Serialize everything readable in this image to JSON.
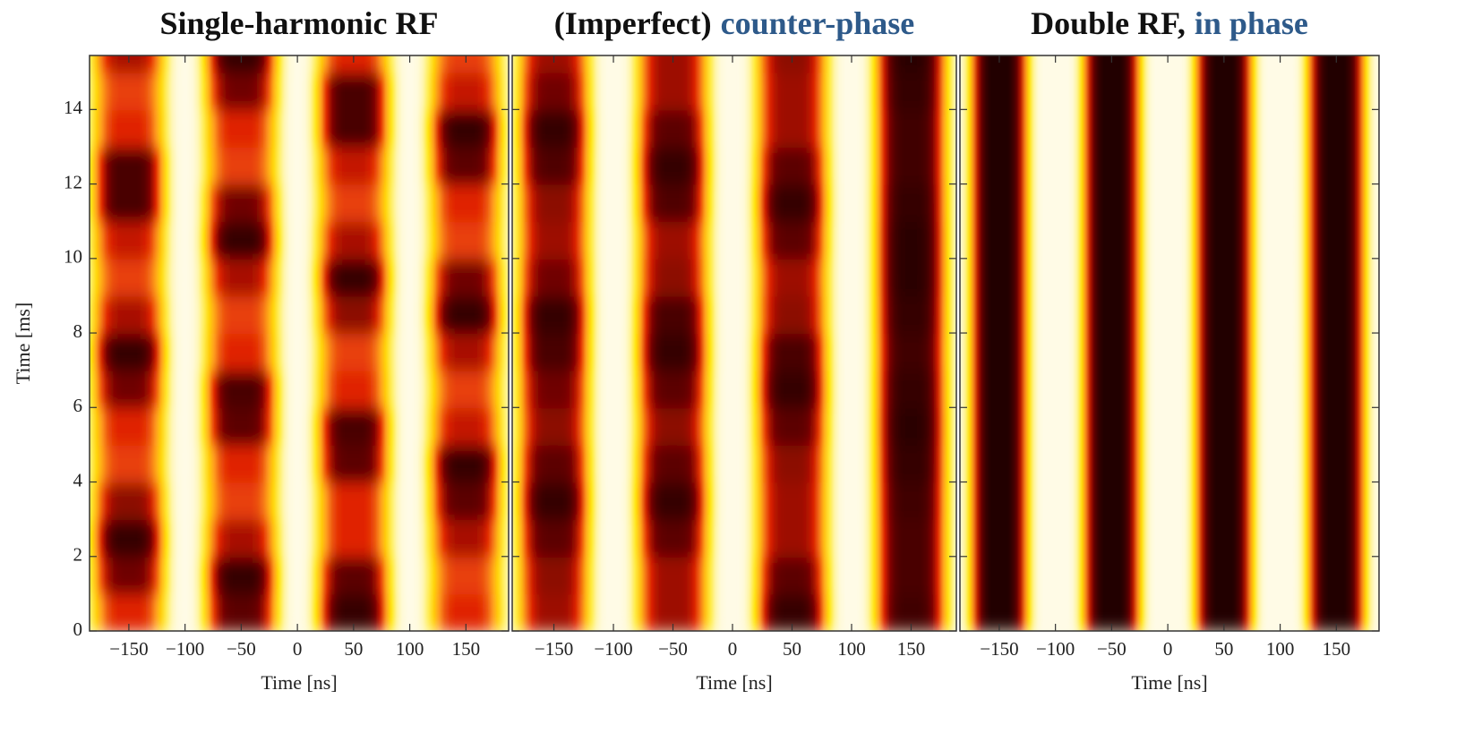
{
  "colormap": [
    "#fffbe6",
    "#ffe600",
    "#ff9a20",
    "#e02000",
    "#700000",
    "#200000"
  ],
  "chart_data": [
    {
      "type": "heatmap",
      "title": [
        {
          "text": "Single-harmonic RF",
          "color": "#111111"
        }
      ],
      "xlabel": "Time [ns]",
      "ylabel": "Time [ms]",
      "xlim": [
        -185,
        188
      ],
      "ylim": [
        0,
        15.45
      ],
      "xticks": [
        {
          "value": -150,
          "label": "−150"
        },
        {
          "value": -100,
          "label": "−100"
        },
        {
          "value": -50,
          "label": "−50"
        },
        0,
        50,
        100,
        150
      ],
      "yticks": [
        0,
        2,
        4,
        6,
        8,
        10,
        12,
        14
      ],
      "y": [
        0,
        1,
        2,
        3,
        4,
        5,
        6,
        7,
        8,
        9,
        10,
        11,
        12,
        13,
        14,
        15
      ],
      "series": [
        {
          "center": -150,
          "width": 30,
          "values": [
            0.6,
            0.8,
            0.95,
            0.75,
            0.55,
            0.6,
            0.8,
            0.95,
            0.7,
            0.55,
            0.65,
            0.9,
            0.9,
            0.6,
            0.55,
            0.7
          ]
        },
        {
          "center": -50,
          "width": 30,
          "values": [
            0.85,
            0.95,
            0.7,
            0.55,
            0.6,
            0.85,
            0.9,
            0.6,
            0.55,
            0.7,
            0.95,
            0.8,
            0.55,
            0.6,
            0.8,
            0.95
          ]
        },
        {
          "center": 50,
          "width": 30,
          "values": [
            0.95,
            0.85,
            0.6,
            0.6,
            0.85,
            0.9,
            0.6,
            0.55,
            0.75,
            0.95,
            0.7,
            0.55,
            0.65,
            0.9,
            0.9,
            0.6
          ]
        },
        {
          "center": 150,
          "width": 30,
          "values": [
            0.6,
            0.55,
            0.7,
            0.85,
            0.95,
            0.65,
            0.55,
            0.7,
            0.95,
            0.8,
            0.55,
            0.6,
            0.85,
            0.95,
            0.65,
            0.55
          ]
        }
      ]
    },
    {
      "type": "heatmap",
      "title": [
        {
          "text": "(Imperfect)",
          "color": "#111111"
        },
        {
          "text": "counter-phase",
          "color": "#2e5a8a"
        }
      ],
      "xlabel": "Time [ns]",
      "xlim": [
        -185,
        188
      ],
      "ylim": [
        0,
        15.45
      ],
      "xticks": [
        {
          "value": -150,
          "label": "−150"
        },
        {
          "value": -100,
          "label": "−100"
        },
        {
          "value": -50,
          "label": "−50"
        },
        0,
        50,
        100,
        150
      ],
      "yticks": [
        0,
        2,
        4,
        6,
        8,
        10,
        12,
        14
      ],
      "y": [
        0,
        1,
        2,
        3,
        4,
        5,
        6,
        7,
        8,
        9,
        10,
        11,
        12,
        13,
        14,
        15
      ],
      "series": [
        {
          "center": -150,
          "width": 28,
          "values": [
            0.72,
            0.75,
            0.85,
            0.95,
            0.85,
            0.75,
            0.8,
            0.9,
            0.95,
            0.8,
            0.72,
            0.75,
            0.88,
            0.95,
            0.8,
            0.72
          ]
        },
        {
          "center": -50,
          "width": 28,
          "values": [
            0.72,
            0.72,
            0.85,
            0.95,
            0.85,
            0.75,
            0.85,
            0.95,
            0.9,
            0.75,
            0.72,
            0.88,
            0.95,
            0.85,
            0.72,
            0.72
          ]
        },
        {
          "center": 50,
          "width": 28,
          "values": [
            0.95,
            0.85,
            0.72,
            0.72,
            0.75,
            0.85,
            0.95,
            0.9,
            0.75,
            0.72,
            0.85,
            0.95,
            0.85,
            0.72,
            0.72,
            0.75
          ]
        },
        {
          "center": 150,
          "width": 28,
          "values": [
            0.92,
            0.9,
            0.9,
            0.92,
            0.95,
            0.97,
            0.95,
            0.92,
            0.95,
            0.97,
            0.97,
            0.95,
            0.92,
            0.92,
            0.95,
            0.97
          ]
        }
      ]
    },
    {
      "type": "heatmap",
      "title": [
        {
          "text": "Double RF,",
          "color": "#111111"
        },
        {
          "text": "in phase",
          "color": "#2e5a8a"
        }
      ],
      "xlabel": "Time [ns]",
      "xlim": [
        -185,
        188
      ],
      "ylim": [
        0,
        15.45
      ],
      "xticks": [
        {
          "value": -150,
          "label": "−150"
        },
        {
          "value": -100,
          "label": "−100"
        },
        {
          "value": -50,
          "label": "−50"
        },
        0,
        50,
        100,
        150
      ],
      "yticks": [
        0,
        2,
        4,
        6,
        8,
        10,
        12,
        14
      ],
      "y": [
        0,
        1,
        2,
        3,
        4,
        5,
        6,
        7,
        8,
        9,
        10,
        11,
        12,
        13,
        14,
        15
      ],
      "series": [
        {
          "center": -150,
          "width": 24,
          "values": [
            1,
            1,
            1,
            1,
            1,
            1,
            1,
            1,
            1,
            1,
            1,
            1,
            1,
            1,
            1,
            1
          ]
        },
        {
          "center": -50,
          "width": 24,
          "values": [
            1,
            1,
            1,
            1,
            1,
            1,
            1,
            1,
            1,
            1,
            1,
            1,
            1,
            1,
            1,
            1
          ]
        },
        {
          "center": 50,
          "width": 24,
          "values": [
            1,
            1,
            1,
            1,
            1,
            1,
            1,
            1,
            1,
            1,
            1,
            1,
            1,
            1,
            1,
            1
          ]
        },
        {
          "center": 150,
          "width": 24,
          "values": [
            1,
            1,
            1,
            1,
            1,
            1,
            1,
            1,
            1,
            1,
            1,
            1,
            1,
            1,
            1,
            1
          ]
        }
      ]
    }
  ]
}
